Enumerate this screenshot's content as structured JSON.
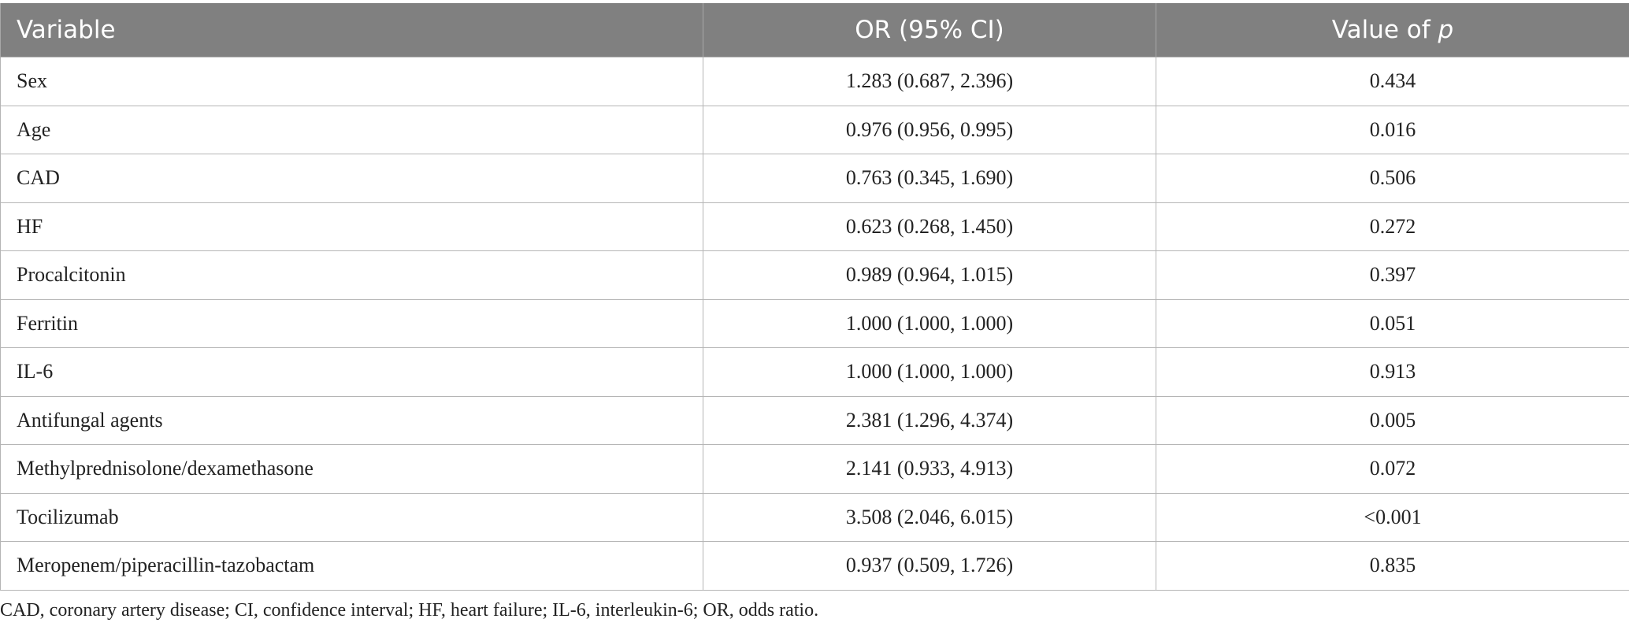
{
  "table": {
    "headers": {
      "variable": "Variable",
      "or": "OR (95% CI)",
      "p_prefix": "Value of ",
      "p_italic": "p"
    },
    "rows": [
      {
        "variable": "Sex",
        "or": "1.283 (0.687, 2.396)",
        "p": "0.434"
      },
      {
        "variable": "Age",
        "or": "0.976 (0.956, 0.995)",
        "p": "0.016"
      },
      {
        "variable": "CAD",
        "or": "0.763 (0.345, 1.690)",
        "p": "0.506"
      },
      {
        "variable": "HF",
        "or": "0.623 (0.268, 1.450)",
        "p": "0.272"
      },
      {
        "variable": "Procalcitonin",
        "or": "0.989 (0.964, 1.015)",
        "p": "0.397"
      },
      {
        "variable": "Ferritin",
        "or": "1.000 (1.000, 1.000)",
        "p": "0.051"
      },
      {
        "variable": "IL-6",
        "or": "1.000 (1.000, 1.000)",
        "p": "0.913"
      },
      {
        "variable": "Antifungal agents",
        "or": "2.381 (1.296, 4.374)",
        "p": "0.005"
      },
      {
        "variable": "Methylprednisolone/dexamethasone",
        "or": "2.141 (0.933, 4.913)",
        "p": "0.072"
      },
      {
        "variable": "Tocilizumab",
        "or": "3.508 (2.046, 6.015)",
        "p": "<0.001"
      },
      {
        "variable": "Meropenem/piperacillin-tazobactam",
        "or": "0.937 (0.509, 1.726)",
        "p": "0.835"
      }
    ]
  },
  "footnote": "CAD, coronary artery disease; CI, confidence interval; HF, heart failure; IL-6, interleukin-6; OR, odds ratio.",
  "colors": {
    "header_bg": "#808080",
    "header_text": "#ffffff",
    "grid_line": "#b5b5b5",
    "body_text": "#222222"
  }
}
